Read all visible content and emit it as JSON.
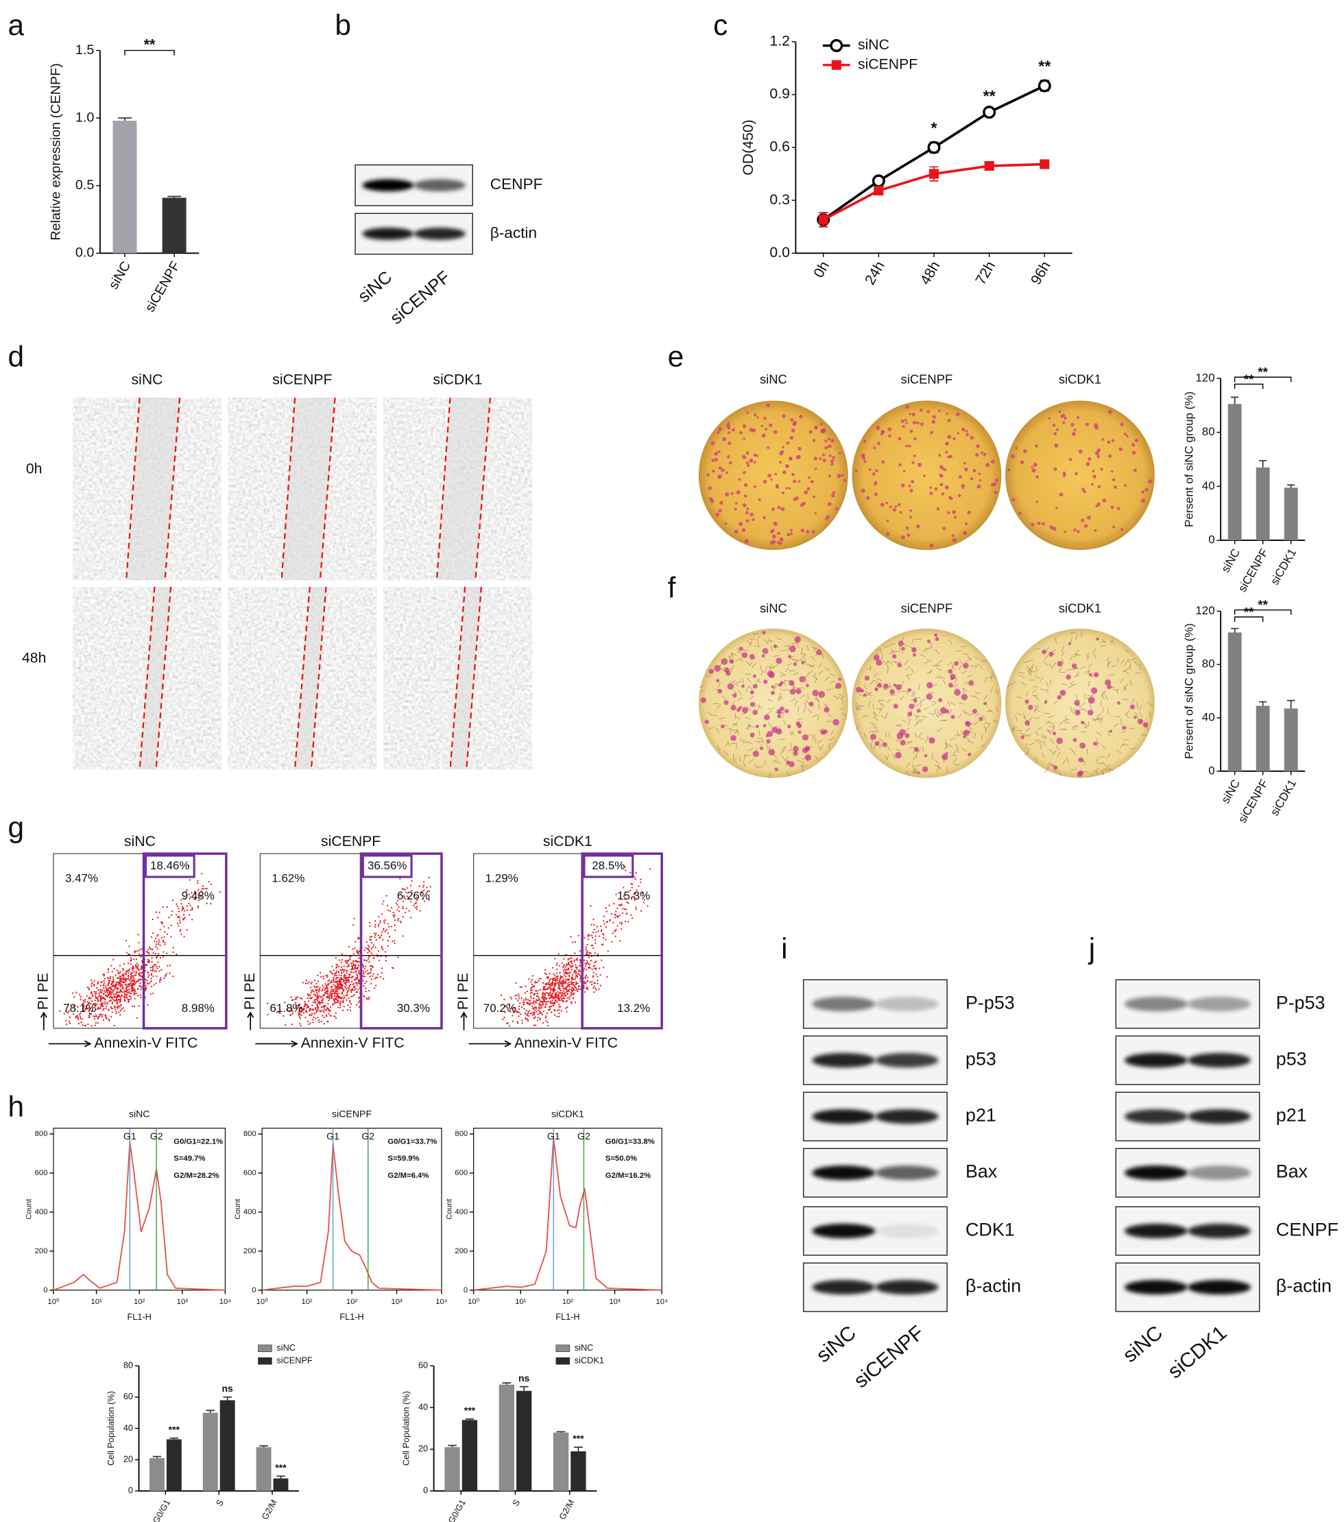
{
  "panel_letters": [
    "a",
    "b",
    "c",
    "d",
    "e",
    "f",
    "g",
    "h",
    "i",
    "j"
  ],
  "chart_data": [
    {
      "type": "bar",
      "categories": [
        "siNC",
        "siCENPF"
      ],
      "values": [
        0.98,
        0.41
      ],
      "errors": [
        0.02,
        0.01
      ],
      "colors": [
        "#a3a3ab",
        "#333333"
      ],
      "ylabel": "Relative expression (CENPF)",
      "ylim": [
        0,
        1.5
      ],
      "yticks": [
        {
          "value": 0,
          "label": "0.0"
        },
        0.5,
        {
          "value": 1,
          "label": "1.0"
        },
        1.5
      ],
      "xtick_rotation": -60,
      "annotations": [
        {
          "text": "**",
          "from": 0,
          "to": 1
        }
      ]
    },
    {
      "type": "line",
      "categories": [
        "0h",
        "24h",
        "48h",
        "72h",
        "96h"
      ],
      "series": [
        {
          "name": "siNC",
          "color": "#000000",
          "marker": "circle-open",
          "values": [
            0.19,
            0.41,
            0.6,
            0.8,
            0.95
          ],
          "errors": [
            0.04,
            0.01,
            0.03,
            0.01,
            0.03
          ]
        },
        {
          "name": "siCENPF",
          "color": "#e8141a",
          "marker": "square",
          "values": [
            0.19,
            0.355,
            0.45,
            0.495,
            0.505
          ],
          "errors": [
            0.04,
            0.01,
            0.04,
            0.01,
            0.01
          ]
        }
      ],
      "ylabel": "OD(450)",
      "ylim": [
        0,
        1.2
      ],
      "yticks": [
        {
          "value": 0,
          "label": "0.0"
        },
        0.3,
        0.6,
        0.9,
        1.2
      ],
      "xtick_rotation": -60,
      "legend": "upper left",
      "annotations": [
        {
          "text": "*",
          "at": 2
        },
        {
          "text": "**",
          "at": 3
        },
        {
          "text": "**",
          "at": 4
        }
      ]
    },
    {
      "type": "bar",
      "categories": [
        "siNC",
        "siCENPF",
        "siCDK1"
      ],
      "values": [
        101,
        54,
        39
      ],
      "errors": [
        5,
        5,
        2
      ],
      "color": "#808080",
      "ylabel": "Persent of siNC group (%)",
      "ylim": [
        0,
        120
      ],
      "yticks": [
        0,
        40,
        80,
        120
      ],
      "xtick_rotation": -60,
      "annotations": [
        {
          "text": "**",
          "from": 0,
          "to": 1
        },
        {
          "text": "**",
          "from": 0,
          "to": 2
        }
      ]
    },
    {
      "type": "bar",
      "categories": [
        "siNC",
        "siCENPF",
        "siCDK1"
      ],
      "values": [
        104,
        49,
        47
      ],
      "errors": [
        3,
        3,
        6
      ],
      "color": "#808080",
      "ylabel": "Persent of siNC group (%)",
      "ylim": [
        0,
        120
      ],
      "yticks": [
        0,
        40,
        80,
        120
      ],
      "xtick_rotation": -60,
      "annotations": [
        {
          "text": "**",
          "from": 0,
          "to": 1
        },
        {
          "text": "**",
          "from": 0,
          "to": 2
        }
      ]
    },
    {
      "type": "line",
      "title": "siNC",
      "xlog": true,
      "color": "#e8504a",
      "x": [
        1,
        3,
        5,
        7,
        12,
        30,
        45,
        60,
        75,
        110,
        170,
        250,
        320,
        450,
        700,
        10000
      ],
      "values": [
        0,
        40,
        80,
        50,
        10,
        40,
        300,
        760,
        600,
        300,
        420,
        620,
        450,
        80,
        10,
        0
      ],
      "xlim": [
        1,
        10000
      ],
      "xticks": [
        {
          "value": 1,
          "label": "10⁰"
        },
        {
          "value": 10,
          "label": "10¹"
        },
        {
          "value": 100,
          "label": "10²"
        },
        {
          "value": 1000,
          "label": "10³"
        },
        {
          "value": 10000,
          "label": "10⁴"
        }
      ],
      "ylim": [
        0,
        830
      ],
      "yticks": [
        0,
        200,
        400,
        600,
        800
      ],
      "xlabel": "FL1-H",
      "ylabel": "Count",
      "gates": [
        {
          "label": "G1",
          "x": 60,
          "color": "#5b9bd5"
        },
        {
          "label": "G2",
          "x": 250,
          "color": "#43a047"
        }
      ],
      "annotations": [
        "G0/G1=22.1%",
        "S=49.7%",
        "G2/M=28.2%"
      ]
    },
    {
      "type": "line",
      "title": "siCENPF",
      "xlog": true,
      "color": "#e8504a",
      "x": [
        1,
        5,
        10,
        20,
        30,
        38,
        50,
        70,
        100,
        150,
        200,
        280,
        400,
        10000
      ],
      "values": [
        0,
        20,
        20,
        40,
        300,
        750,
        500,
        250,
        200,
        180,
        120,
        40,
        10,
        0
      ],
      "xlim": [
        1,
        10000
      ],
      "xticks": [
        {
          "value": 1,
          "label": "10⁰"
        },
        {
          "value": 10,
          "label": "10¹"
        },
        {
          "value": 100,
          "label": "10²"
        },
        {
          "value": 1000,
          "label": "10³"
        },
        {
          "value": 10000,
          "label": "10⁴"
        }
      ],
      "ylim": [
        0,
        830
      ],
      "yticks": [
        0,
        200,
        400,
        600,
        800
      ],
      "xlabel": "FL1-H",
      "ylabel": "Count",
      "gates": [
        {
          "label": "G1",
          "x": 38,
          "color": "#5b9bd5"
        },
        {
          "label": "G2",
          "x": 230,
          "color": "#43a047"
        }
      ],
      "annotations": [
        "G0/G1=33.7%",
        "S=59.9%",
        "G2/M=6.4%"
      ]
    },
    {
      "type": "line",
      "title": "siCDK1",
      "xlog": true,
      "color": "#e8504a",
      "x": [
        1,
        5,
        10,
        20,
        35,
        50,
        70,
        110,
        150,
        180,
        230,
        300,
        400,
        700,
        10000
      ],
      "values": [
        0,
        20,
        15,
        30,
        200,
        780,
        480,
        330,
        320,
        430,
        520,
        300,
        60,
        10,
        0
      ],
      "xlim": [
        1,
        10000
      ],
      "xticks": [
        {
          "value": 1,
          "label": "10⁰"
        },
        {
          "value": 10,
          "label": "10¹"
        },
        {
          "value": 100,
          "label": "10²"
        },
        {
          "value": 1000,
          "label": "10³"
        },
        {
          "value": 10000,
          "label": "10⁴"
        }
      ],
      "ylim": [
        0,
        830
      ],
      "yticks": [
        0,
        200,
        400,
        600,
        800
      ],
      "xlabel": "FL1-H",
      "ylabel": "Count",
      "gates": [
        {
          "label": "G1",
          "x": 50,
          "color": "#5b9bd5"
        },
        {
          "label": "G2",
          "x": 220,
          "color": "#43a047"
        }
      ],
      "annotations": [
        "G0/G1=33.8%",
        "S=50.0%",
        "G2/M=16.2%"
      ]
    },
    {
      "type": "bar",
      "categories": [
        "G0/G1",
        "S",
        "G2/M"
      ],
      "series": [
        {
          "name": "siNC",
          "color": "#8c8c8c",
          "values": [
            21,
            50,
            28
          ],
          "errors": [
            1,
            1.5,
            0.8
          ]
        },
        {
          "name": "siCENPF",
          "color": "#2b2b2b",
          "values": [
            33,
            58,
            8
          ],
          "errors": [
            0.8,
            2,
            1.5
          ]
        }
      ],
      "ylabel": "Cell Population (%)",
      "ylim": [
        0,
        80
      ],
      "yticks": [
        0,
        20,
        40,
        60,
        80
      ],
      "legend": "upper right",
      "xtick_rotation": -60,
      "annotations": [
        {
          "text": "***",
          "at": 0
        },
        {
          "text": "ns",
          "at": 1
        },
        {
          "text": "***",
          "at": 2
        }
      ]
    },
    {
      "type": "bar",
      "categories": [
        "G0/G1",
        "S",
        "G2/M"
      ],
      "series": [
        {
          "name": "siNC",
          "color": "#8c8c8c",
          "values": [
            21,
            51,
            28
          ],
          "errors": [
            0.8,
            0.8,
            0.4
          ]
        },
        {
          "name": "siCDK1",
          "color": "#2b2b2b",
          "values": [
            34,
            48,
            19
          ],
          "errors": [
            0.5,
            2,
            2
          ]
        }
      ],
      "ylabel": "Cell Population (%)",
      "ylim": [
        0,
        60
      ],
      "yticks": [
        0,
        20,
        40,
        60
      ],
      "legend": "upper right",
      "xtick_rotation": -60,
      "annotations": [
        {
          "text": "***",
          "at": 0
        },
        {
          "text": "ns",
          "at": 1
        },
        {
          "text": "***",
          "at": 2
        }
      ]
    }
  ],
  "blot_b": {
    "bands": [
      "CENPF",
      "β-actin"
    ],
    "lanes": [
      "siNC",
      "siCENPF"
    ]
  },
  "wound": {
    "columns": [
      "siNC",
      "siCENPF",
      "siCDK1"
    ],
    "rows": [
      "0h",
      "48h"
    ]
  },
  "invasion_e": {
    "columns": [
      "siNC",
      "siCENPF",
      "siCDK1"
    ]
  },
  "invasion_f": {
    "columns": [
      "siNC",
      "siCENPF",
      "siCDK1"
    ]
  },
  "flow": {
    "ylabel": "PI PE",
    "xlabel": "Annexin-V FITC",
    "plots": [
      {
        "title": "siNC",
        "total": "18.46%",
        "upper_left": "3.47%",
        "upper_right": "9.48%",
        "lower_left": "78.1%",
        "lower_right": "8.98%"
      },
      {
        "title": "siCENPF",
        "total": "36.56%",
        "upper_left": "1.62%",
        "upper_right": "6.26%",
        "lower_left": "61.8%",
        "lower_right": "30.3%"
      },
      {
        "title": "siCDK1",
        "total": "28.5%",
        "upper_left": "1.29%",
        "upper_right": "15.3%",
        "lower_left": "70.2%",
        "lower_right": "13.2%"
      }
    ]
  },
  "blot_i": {
    "bands": [
      "P-p53",
      "p53",
      "p21",
      "Bax",
      "CDK1",
      "β-actin"
    ],
    "lanes": [
      "siNC",
      "siCENPF"
    ]
  },
  "blot_j": {
    "bands": [
      "P-p53",
      "p53",
      "p21",
      "Bax",
      "CENPF",
      "β-actin"
    ],
    "lanes": [
      "siNC",
      "siCDK1"
    ]
  }
}
